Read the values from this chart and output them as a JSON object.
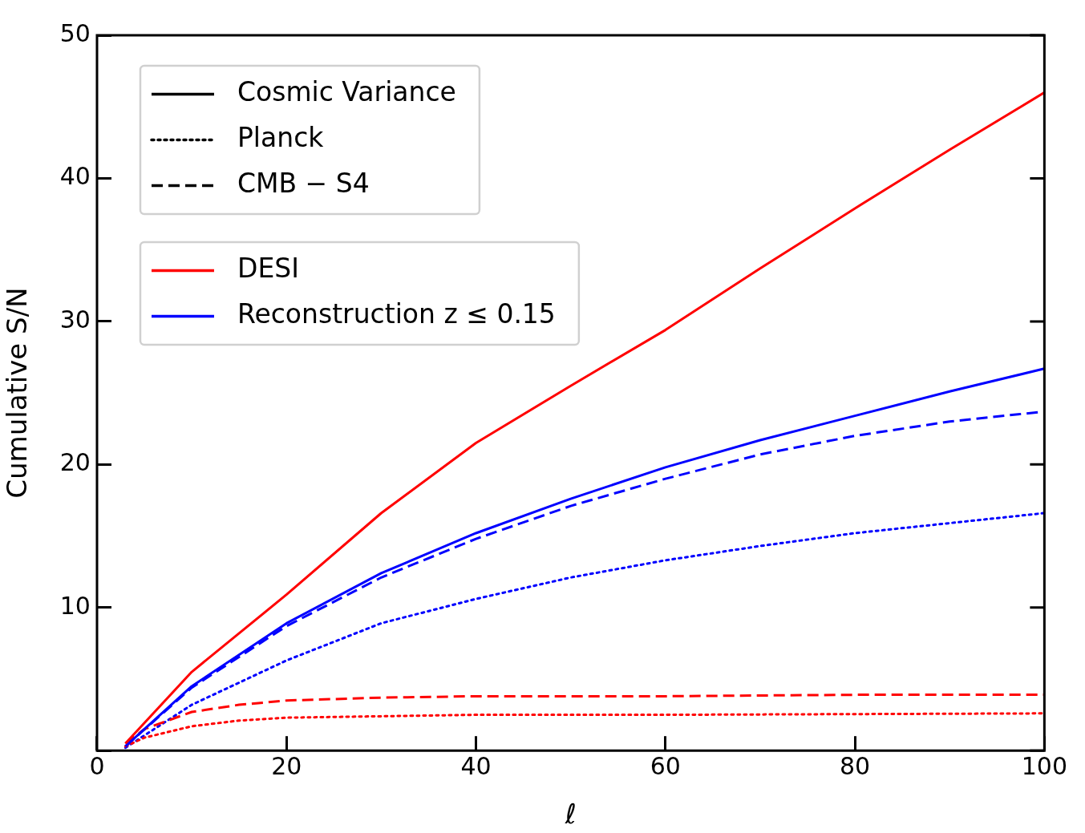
{
  "chart_data": {
    "type": "line",
    "xlabel": "ℓ",
    "ylabel": "Cumulative S/N",
    "xlim": [
      0,
      100
    ],
    "ylim": [
      0,
      50
    ],
    "xticks": [
      0,
      20,
      40,
      60,
      80,
      100
    ],
    "yticks": [
      {
        "value": 0,
        "label": null
      },
      10,
      20,
      30,
      40,
      50
    ],
    "grid": false,
    "legend": "top left",
    "marker": "none",
    "series": [
      {
        "name": "Cosmic Variance",
        "color": "#000000",
        "line_style": "solid"
      },
      {
        "name": "Planck",
        "color": "#000000",
        "line_style": "dotted"
      },
      {
        "name": "CMB − S4",
        "color": "#000000",
        "line_style": "dashed"
      },
      {
        "name": "DESI",
        "color": "#ff0000",
        "line_style": "solid",
        "x": [
          3,
          10,
          20,
          30,
          40,
          50,
          60,
          70,
          80,
          90,
          100
        ],
        "values": [
          0.5,
          5.5,
          10.9,
          16.6,
          21.5,
          25.5,
          29.4,
          33.7,
          37.9,
          42.0,
          46.0
        ]
      },
      {
        "name": "Reconstruction z ≤ 0.15",
        "color": "#0000ff",
        "line_style": "solid",
        "x": [
          3,
          10,
          20,
          30,
          40,
          50,
          60,
          70,
          80,
          90,
          100
        ],
        "values": [
          0.3,
          4.5,
          8.9,
          12.4,
          15.2,
          17.6,
          19.8,
          21.7,
          23.4,
          25.1,
          26.7
        ]
      },
      {
        "color": "#ff0000",
        "line_style": "dashed",
        "x": [
          3,
          5,
          10,
          15,
          20,
          30,
          40,
          60,
          80,
          100
        ],
        "values": [
          0.5,
          1.5,
          2.7,
          3.2,
          3.5,
          3.7,
          3.8,
          3.8,
          3.9,
          3.9
        ]
      },
      {
        "color": "#ff0000",
        "line_style": "dotted",
        "x": [
          3,
          5,
          10,
          15,
          20,
          40,
          60,
          100
        ],
        "values": [
          0.3,
          0.9,
          1.7,
          2.1,
          2.3,
          2.5,
          2.5,
          2.6
        ]
      },
      {
        "color": "#0000ff",
        "line_style": "dashed",
        "x": [
          3,
          10,
          20,
          30,
          40,
          50,
          60,
          70,
          80,
          90,
          100
        ],
        "values": [
          0.3,
          4.4,
          8.7,
          12.1,
          14.8,
          17.1,
          19.0,
          20.7,
          22.0,
          23.0,
          23.7
        ]
      },
      {
        "color": "#0000ff",
        "line_style": "dotted",
        "x": [
          3,
          10,
          20,
          30,
          40,
          50,
          60,
          70,
          80,
          90,
          100
        ],
        "values": [
          0.2,
          3.2,
          6.3,
          8.9,
          10.6,
          12.1,
          13.3,
          14.3,
          15.2,
          15.9,
          16.6
        ]
      }
    ]
  }
}
